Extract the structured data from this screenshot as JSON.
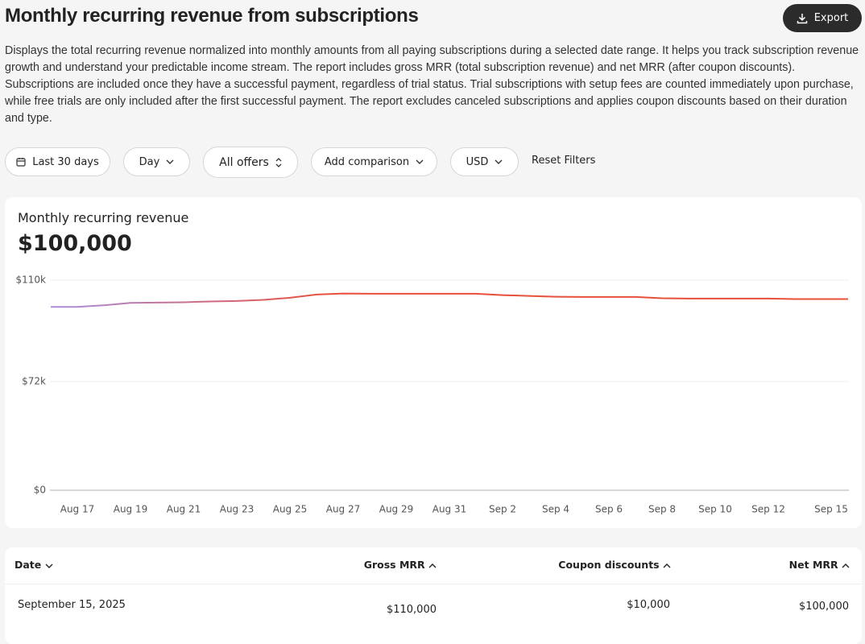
{
  "header": {
    "title": "Monthly recurring revenue from subscriptions",
    "export": "Export",
    "description": "Displays the total recurring revenue normalized into monthly amounts from all paying subscriptions during a selected date range. It helps you track subscription revenue growth and understand your predictable income stream. The report includes gross MRR (total subscription revenue) and net MRR (after coupon discounts). Subscriptions are included once they have a successful payment, regardless of trial status. Trial subscriptions with setup fees are counted immediately upon purchase, while free trials are only included after the first successful payment. The report excludes canceled subscriptions and applies coupon discounts based on their duration and type."
  },
  "filters": [
    "Last 30 days",
    "Day",
    "All offers",
    "Add comparison",
    "USD",
    "Reset Filters"
  ],
  "chart_data": {
    "type": "line",
    "title": "Monthly recurring revenue",
    "headline": "$100,000",
    "categories": [
      null,
      "Aug 17",
      null,
      "Aug 19",
      null,
      "Aug 21",
      null,
      "Aug 23",
      null,
      "Aug 25",
      null,
      "Aug 27",
      null,
      "Aug 29",
      null,
      "Aug 31",
      null,
      "Sep 2",
      null,
      "Sep 4",
      null,
      "Sep 6",
      null,
      "Sep 8",
      null,
      "Sep 10",
      null,
      "Sep 12",
      null,
      null,
      "Sep 15"
    ],
    "values": [
      100000,
      100000,
      100600,
      101500,
      101600,
      101700,
      102000,
      102200,
      102600,
      103400,
      104600,
      105000,
      104900,
      104900,
      104900,
      104900,
      104900,
      104400,
      104100,
      103800,
      103700,
      103700,
      103700,
      103200,
      103100,
      103100,
      103100,
      103100,
      102900,
      102900,
      102900
    ],
    "colors": [
      "#a98ee0",
      "#e8503a"
    ],
    "ylim": [
      0,
      110000
    ],
    "yticks": [
      {
        "value": 0,
        "label": "$0"
      },
      {
        "value": 72000,
        "label": "$72k"
      },
      {
        "value": 110000,
        "label": "$110k"
      }
    ],
    "grid": true
  },
  "table": {
    "columns": [
      "Date",
      "Gross MRR",
      "Coupon discounts",
      "Net MRR"
    ],
    "rows": [
      [
        "September 15, 2025",
        "$110,000",
        "$10,000",
        "$100,000"
      ]
    ]
  }
}
